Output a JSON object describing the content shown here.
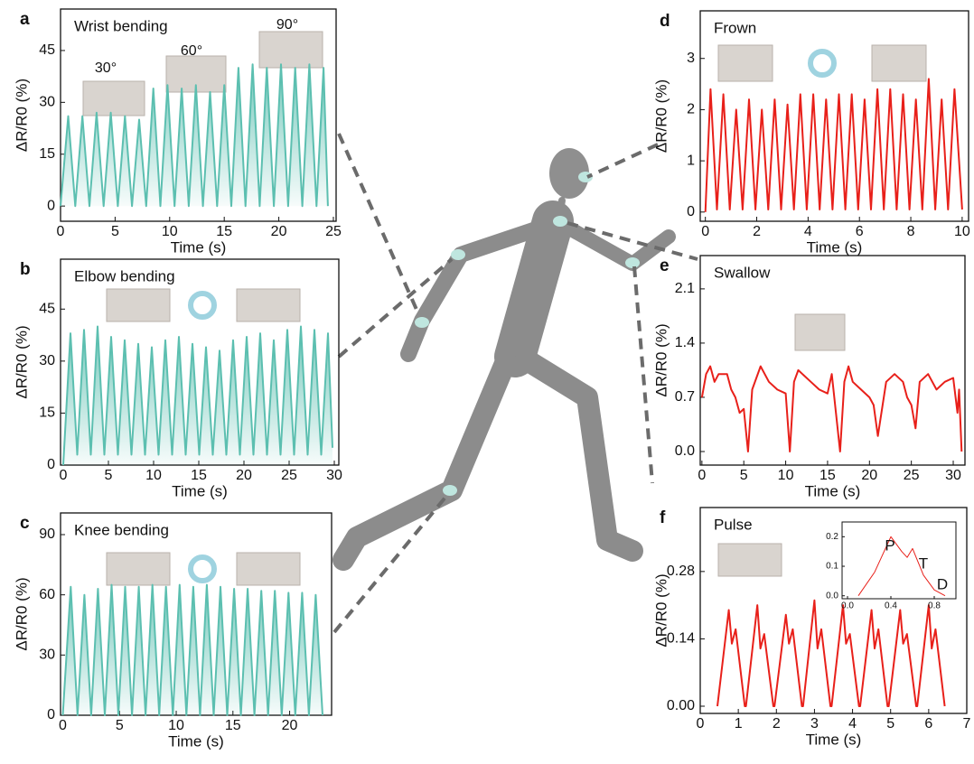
{
  "chart_data": [
    {
      "type": "line",
      "panel": "a",
      "title": "Wrist bending",
      "x_label": "Time (s)",
      "y_label": "ΔR/R0 (%)",
      "annotations": [
        "30°",
        "60°",
        "90°"
      ],
      "area": true,
      "xlim": [
        0,
        25.25
      ],
      "xticks": [
        0,
        5,
        10,
        15,
        20,
        25
      ],
      "ylim": [
        -4.4,
        57
      ],
      "yticks": [
        0,
        15,
        30,
        45
      ],
      "x": [
        0,
        0.7,
        1.35,
        2.0,
        2.65,
        3.3,
        3.95,
        4.6,
        5.25,
        5.9,
        6.55,
        7.2,
        7.85,
        8.5,
        9.15,
        9.8,
        10.45,
        11.1,
        11.75,
        12.4,
        13.05,
        13.7,
        14.35,
        15.0,
        15.65,
        16.3,
        16.95,
        17.6,
        18.25,
        18.9,
        19.55,
        20.2,
        20.85,
        21.5,
        22.15,
        22.8,
        23.45,
        24.1,
        24.5
      ],
      "series": [
        {
          "color": "#5cbfb0",
          "values": [
            0,
            26,
            0,
            26,
            0,
            27,
            0,
            27,
            0,
            26,
            0,
            25,
            0,
            34,
            0,
            35,
            0,
            34,
            0,
            35,
            0,
            33,
            0,
            35,
            0,
            40,
            0,
            41,
            0,
            40,
            0,
            41,
            0,
            40,
            0,
            41,
            0,
            40,
            0
          ]
        }
      ]
    },
    {
      "type": "line",
      "panel": "b",
      "title": "Elbow bending",
      "x_label": "Time (s)",
      "y_label": "ΔR/R0 (%)",
      "area": true,
      "xlim": [
        -0.3,
        30.5
      ],
      "xticks": [
        0,
        5,
        10,
        15,
        20,
        25,
        30
      ],
      "ylim": [
        0,
        59.4
      ],
      "yticks": [
        0,
        15,
        30,
        45
      ],
      "x": [
        0,
        0.8,
        1.55,
        2.3,
        3.05,
        3.8,
        4.55,
        5.3,
        6.05,
        6.8,
        7.55,
        8.3,
        9.05,
        9.8,
        10.55,
        11.3,
        12.05,
        12.8,
        13.55,
        14.3,
        15.05,
        15.8,
        16.55,
        17.3,
        18.05,
        18.8,
        19.55,
        20.3,
        21.05,
        21.8,
        22.55,
        23.3,
        24.05,
        24.8,
        25.55,
        26.3,
        27.05,
        27.8,
        28.55,
        29.3,
        29.8
      ],
      "series": [
        {
          "color": "#5cbfb0",
          "values": [
            0,
            38,
            3,
            39,
            3,
            40,
            3,
            37,
            3,
            36,
            3,
            35,
            3,
            34,
            3,
            36,
            3,
            37,
            3,
            35,
            3,
            34,
            3,
            33,
            3,
            36,
            3,
            37,
            3,
            38,
            3,
            36,
            3,
            39,
            3,
            40,
            3,
            39,
            3,
            38,
            5
          ]
        }
      ]
    },
    {
      "type": "line",
      "panel": "c",
      "title": "Knee bending",
      "x_label": "Time (s)",
      "y_label": "ΔR/R0 (%)",
      "area": true,
      "xlim": [
        -0.2,
        23.7
      ],
      "xticks": [
        0,
        5,
        10,
        15,
        20
      ],
      "ylim": [
        0,
        100.8
      ],
      "yticks": [
        0,
        30,
        60,
        90
      ],
      "x": [
        0,
        0.7,
        1.3,
        1.9,
        2.5,
        3.1,
        3.7,
        4.3,
        4.9,
        5.5,
        6.1,
        6.7,
        7.3,
        7.9,
        8.5,
        9.1,
        9.7,
        10.3,
        10.9,
        11.5,
        12.1,
        12.7,
        13.3,
        13.9,
        14.5,
        15.1,
        15.7,
        16.3,
        16.9,
        17.5,
        18.1,
        18.7,
        19.3,
        19.9,
        20.5,
        21.1,
        21.7,
        22.3,
        22.9
      ],
      "series": [
        {
          "color": "#5cbfb0",
          "values": [
            0,
            64,
            0,
            60,
            0,
            63,
            0,
            65,
            0,
            64,
            0,
            64,
            0,
            65,
            0,
            64,
            0,
            65,
            0,
            64,
            0,
            65,
            0,
            64,
            0,
            63,
            0,
            63,
            0,
            62,
            0,
            62,
            0,
            61,
            0,
            61,
            0,
            60,
            0
          ]
        }
      ]
    },
    {
      "type": "line",
      "panel": "d",
      "title": "Frown",
      "x_label": "Time (s)",
      "y_label": "ΔR/R0 (%)",
      "area": false,
      "xlim": [
        -0.2,
        10.25
      ],
      "xticks": [
        0,
        2,
        4,
        6,
        8,
        10
      ],
      "ylim": [
        -0.18,
        3.93
      ],
      "yticks": [
        0,
        1,
        2,
        3
      ],
      "x": [
        0,
        0.2,
        0.45,
        0.7,
        0.95,
        1.2,
        1.45,
        1.7,
        1.95,
        2.2,
        2.45,
        2.7,
        2.95,
        3.2,
        3.45,
        3.7,
        3.95,
        4.2,
        4.45,
        4.7,
        4.95,
        5.2,
        5.45,
        5.7,
        5.95,
        6.2,
        6.45,
        6.7,
        6.95,
        7.2,
        7.45,
        7.7,
        7.95,
        8.2,
        8.45,
        8.7,
        8.95,
        9.2,
        9.45,
        9.7,
        10.0
      ],
      "series": [
        {
          "color": "#e8201a",
          "values": [
            0,
            2.4,
            0.05,
            2.3,
            0.05,
            2.0,
            0.05,
            2.2,
            0.05,
            2.0,
            0.05,
            2.2,
            0.05,
            2.1,
            0.05,
            2.3,
            0.05,
            2.3,
            0.05,
            2.2,
            0.05,
            2.3,
            0.05,
            2.3,
            0.05,
            2.2,
            0.05,
            2.4,
            0.05,
            2.4,
            0.05,
            2.3,
            0.05,
            2.2,
            0.05,
            2.6,
            0.05,
            2.2,
            0.05,
            2.4,
            0.05
          ]
        }
      ]
    },
    {
      "type": "line",
      "panel": "e",
      "title": "Swallow",
      "x_label": "Time (s)",
      "y_label": "ΔR/R0 (%)",
      "area": false,
      "xlim": [
        -0.2,
        31.4
      ],
      "xticks": [
        0,
        5,
        10,
        15,
        20,
        25,
        30
      ],
      "ylim": [
        -0.175,
        2.53
      ],
      "yticks": [
        {
          "value": 0,
          "label": "0.0"
        },
        0.7,
        1.4,
        2.1
      ],
      "x": [
        0,
        0.5,
        1,
        1.5,
        2,
        3,
        3.5,
        4,
        4.5,
        5,
        5.5,
        6,
        7,
        8,
        9,
        10,
        10.5,
        11,
        11.5,
        12,
        13,
        14,
        15,
        15.5,
        16,
        16.5,
        17,
        17.5,
        18,
        19,
        20,
        20.5,
        21,
        22,
        23,
        24,
        24.5,
        25,
        25.5,
        26,
        27,
        28,
        29,
        30,
        30.5,
        30.7,
        31
      ],
      "series": [
        {
          "color": "#e8201a",
          "values": [
            0.7,
            1.0,
            1.1,
            0.9,
            1.0,
            1.0,
            0.8,
            0.7,
            0.5,
            0.55,
            0.0,
            0.8,
            1.1,
            0.9,
            0.8,
            0.75,
            0.0,
            0.9,
            1.05,
            1.0,
            0.9,
            0.8,
            0.75,
            1.0,
            0.5,
            0.0,
            0.9,
            1.1,
            0.9,
            0.8,
            0.7,
            0.6,
            0.2,
            0.9,
            1.0,
            0.9,
            0.7,
            0.6,
            0.3,
            0.9,
            1.0,
            0.8,
            0.9,
            0.95,
            0.5,
            0.8,
            0.0
          ]
        }
      ]
    },
    {
      "type": "line",
      "panel": "f",
      "title": "Pulse",
      "x_label": "Time (s)",
      "y_label": "ΔR/R0 (%)",
      "area": false,
      "xlim": [
        0,
        7
      ],
      "xticks": [
        0,
        1,
        2,
        3,
        4,
        5,
        6,
        7
      ],
      "ylim": [
        -0.015,
        0.413
      ],
      "yticks": [
        {
          "value": 0,
          "label": "0.00"
        },
        0.14,
        0.28
      ],
      "x": [
        0.45,
        0.75,
        0.83,
        0.93,
        1.17,
        1.2,
        1.5,
        1.58,
        1.68,
        1.92,
        1.95,
        2.25,
        2.33,
        2.43,
        2.67,
        2.7,
        3.0,
        3.08,
        3.18,
        3.42,
        3.45,
        3.75,
        3.83,
        3.93,
        4.17,
        4.2,
        4.5,
        4.58,
        4.68,
        4.92,
        4.95,
        5.25,
        5.33,
        5.43,
        5.67,
        5.7,
        6.0,
        6.08,
        6.18,
        6.42
      ],
      "series": [
        {
          "color": "#e8201a",
          "values": [
            0,
            0.2,
            0.13,
            0.16,
            0,
            0,
            0.21,
            0.12,
            0.15,
            0,
            0,
            0.19,
            0.13,
            0.16,
            0,
            0,
            0.22,
            0.12,
            0.16,
            0,
            0,
            0.21,
            0.13,
            0.15,
            0,
            0,
            0.2,
            0.12,
            0.16,
            0,
            0,
            0.2,
            0.13,
            0.15,
            0,
            0,
            0.21,
            0.12,
            0.16,
            0
          ]
        }
      ]
    },
    {
      "type": "line",
      "annotations": [
        "P",
        "T",
        "D"
      ],
      "area": false,
      "xlim": [
        -0.05,
        1.0
      ],
      "xticks": [
        {
          "value": 0,
          "label": "0.0"
        },
        0.4,
        0.8
      ],
      "ylim": [
        -0.01,
        0.25
      ],
      "yticks": [
        {
          "value": 0,
          "label": "0.0"
        },
        0.1,
        0.2
      ],
      "x": [
        0.1,
        0.25,
        0.4,
        0.5,
        0.55,
        0.6,
        0.7,
        0.8,
        0.9
      ],
      "series": [
        {
          "color": "#e8201a",
          "values": [
            0,
            0.08,
            0.2,
            0.15,
            0.13,
            0.16,
            0.07,
            0.02,
            0
          ]
        }
      ]
    }
  ]
}
